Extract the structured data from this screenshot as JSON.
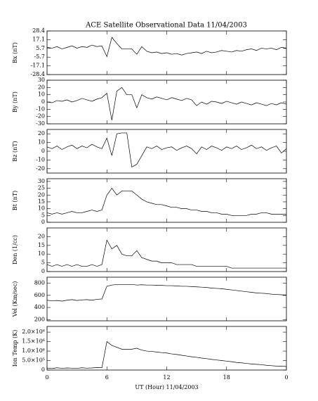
{
  "chart_data": [
    {
      "type": "line",
      "title": "ACE Satellite Observational Data   11/04/2003",
      "ylabel": "Bx (nT)",
      "x": [
        0,
        0.5,
        1,
        1.5,
        2,
        2.5,
        3,
        3.5,
        4,
        4.5,
        5,
        5.5,
        6,
        6.5,
        7,
        7.5,
        8,
        8.5,
        9,
        9.5,
        10,
        10.5,
        11,
        11.5,
        12,
        12.5,
        13,
        13.5,
        14,
        14.5,
        15,
        15.5,
        16,
        16.5,
        17,
        17.5,
        18,
        18.5,
        19,
        19.5,
        20,
        20.5,
        21,
        21.5,
        22,
        22.5,
        23,
        23.5,
        24
      ],
      "values": [
        7,
        6,
        8,
        5,
        7,
        9,
        6,
        8,
        7,
        10,
        8,
        9,
        -5,
        20,
        12,
        5,
        5,
        5,
        -2,
        8,
        2,
        0,
        1,
        -1,
        0,
        -2,
        -1,
        -3,
        -1,
        0,
        1,
        -1,
        2,
        0,
        1,
        3,
        2,
        1,
        3,
        2,
        4,
        5,
        3,
        6,
        5,
        6,
        4,
        7,
        6
      ],
      "xlim": [
        0,
        24
      ],
      "xticks": [
        0,
        6,
        12,
        18,
        24
      ],
      "ylim": [
        -28.4,
        28.4
      ],
      "yticks": [
        28.4,
        17.1,
        5.7,
        -5.7,
        -17.1,
        -28.4
      ],
      "color": "#000000"
    },
    {
      "type": "line",
      "ylabel": "By (nT)",
      "x": [
        0,
        0.5,
        1,
        1.5,
        2,
        2.5,
        3,
        3.5,
        4,
        4.5,
        5,
        5.5,
        6,
        6.5,
        7,
        7.5,
        8,
        8.5,
        9,
        9.5,
        10,
        10.5,
        11,
        11.5,
        12,
        12.5,
        13,
        13.5,
        14,
        14.5,
        15,
        15.5,
        16,
        16.5,
        17,
        17.5,
        18,
        18.5,
        19,
        19.5,
        20,
        20.5,
        21,
        21.5,
        22,
        22.5,
        23,
        23.5,
        24
      ],
      "values": [
        0,
        -1,
        2,
        1,
        3,
        0,
        2,
        5,
        3,
        1,
        4,
        6,
        12,
        -25,
        15,
        20,
        10,
        10,
        -8,
        10,
        6,
        4,
        7,
        5,
        3,
        6,
        4,
        2,
        5,
        3,
        -5,
        0,
        -3,
        1,
        0,
        -2,
        1,
        -1,
        -3,
        0,
        -2,
        -4,
        -1,
        -3,
        -5,
        -2,
        -4,
        -1,
        -3
      ],
      "xlim": [
        0,
        24
      ],
      "xticks": [
        0,
        6,
        12,
        18,
        24
      ],
      "ylim": [
        -30,
        30
      ],
      "yticks": [
        30,
        20,
        10,
        0,
        -10,
        -20,
        -30
      ],
      "color": "#000000"
    },
    {
      "type": "line",
      "ylabel": "Bz (nT)",
      "x": [
        0,
        0.5,
        1,
        1.5,
        2,
        2.5,
        3,
        3.5,
        4,
        4.5,
        5,
        5.5,
        6,
        6.5,
        7,
        7.5,
        8,
        8.5,
        9,
        9.5,
        10,
        10.5,
        11,
        11.5,
        12,
        12.5,
        13,
        13.5,
        14,
        14.5,
        15,
        15.5,
        16,
        16.5,
        17,
        17.5,
        18,
        18.5,
        19,
        19.5,
        20,
        20.5,
        21,
        21.5,
        22,
        22.5,
        23,
        23.5,
        24
      ],
      "values": [
        5,
        3,
        6,
        2,
        5,
        7,
        3,
        6,
        4,
        8,
        5,
        3,
        15,
        -5,
        20,
        21,
        21,
        -18,
        -15,
        -5,
        5,
        3,
        6,
        2,
        4,
        5,
        1,
        4,
        6,
        3,
        -3,
        5,
        2,
        6,
        4,
        1,
        5,
        3,
        6,
        2,
        4,
        7,
        3,
        5,
        1,
        4,
        6,
        -2,
        3
      ],
      "xlim": [
        0,
        24
      ],
      "xticks": [
        0,
        6,
        12,
        18,
        24
      ],
      "ylim": [
        -25,
        25
      ],
      "yticks": [
        20,
        10,
        0,
        -10,
        -20
      ],
      "color": "#000000"
    },
    {
      "type": "line",
      "ylabel": "Bt (nT)",
      "x": [
        0,
        0.5,
        1,
        1.5,
        2,
        2.5,
        3,
        3.5,
        4,
        4.5,
        5,
        5.5,
        6,
        6.5,
        7,
        7.5,
        8,
        8.5,
        9,
        9.5,
        10,
        10.5,
        11,
        11.5,
        12,
        12.5,
        13,
        13.5,
        14,
        14.5,
        15,
        15.5,
        16,
        16.5,
        17,
        17.5,
        18,
        18.5,
        19,
        19.5,
        20,
        20.5,
        21,
        21.5,
        22,
        22.5,
        23,
        23.5,
        24
      ],
      "values": [
        7,
        6,
        7,
        6,
        7,
        8,
        7,
        7,
        8,
        9,
        8,
        9,
        20,
        25,
        20,
        23,
        23,
        23,
        20,
        17,
        15,
        14,
        13,
        13,
        12,
        11,
        11,
        10,
        10,
        9,
        9,
        8,
        8,
        7,
        7,
        6,
        6,
        5,
        5,
        5,
        5,
        6,
        6,
        7,
        7,
        6,
        6,
        6,
        6
      ],
      "xlim": [
        0,
        24
      ],
      "xticks": [
        0,
        6,
        12,
        18,
        24
      ],
      "ylim": [
        0,
        32
      ],
      "yticks": [
        0,
        5,
        10,
        15,
        20,
        25,
        30
      ],
      "color": "#000000"
    },
    {
      "type": "line",
      "ylabel": "Den (1/cc)",
      "x": [
        0,
        0.5,
        1,
        1.5,
        2,
        2.5,
        3,
        3.5,
        4,
        4.5,
        5,
        5.5,
        6,
        6.5,
        7,
        7.5,
        8,
        8.5,
        9,
        9.5,
        10,
        10.5,
        11,
        11.5,
        12,
        12.5,
        13,
        13.5,
        14,
        14.5,
        15,
        15.5,
        16,
        16.5,
        17,
        17.5,
        18,
        18.5,
        19,
        19.5,
        20,
        20.5,
        21,
        21.5,
        22,
        22.5,
        23,
        23.5,
        24
      ],
      "values": [
        4,
        3,
        4,
        3,
        4,
        3,
        4,
        3,
        3,
        4,
        3,
        4,
        18,
        13,
        15,
        10,
        9,
        9,
        12,
        8,
        7,
        6,
        6,
        5,
        5,
        5,
        4,
        4,
        4,
        4,
        3,
        3,
        3,
        3,
        3,
        3,
        3,
        2,
        2,
        2,
        2,
        2,
        2,
        2,
        2,
        2,
        2,
        2,
        2
      ],
      "xlim": [
        0,
        24
      ],
      "xticks": [
        0,
        6,
        12,
        18,
        24
      ],
      "ylim": [
        0,
        25
      ],
      "yticks": [
        0,
        5,
        10,
        15,
        20
      ],
      "color": "#000000"
    },
    {
      "type": "line",
      "ylabel": "Vel (Km/sec)",
      "x": [
        0,
        0.5,
        1,
        1.5,
        2,
        2.5,
        3,
        3.5,
        4,
        4.5,
        5,
        5.5,
        6,
        6.5,
        7,
        7.5,
        8,
        8.5,
        9,
        9.5,
        10,
        10.5,
        11,
        11.5,
        12,
        12.5,
        13,
        13.5,
        14,
        14.5,
        15,
        15.5,
        16,
        16.5,
        17,
        17.5,
        18,
        18.5,
        19,
        19.5,
        20,
        20.5,
        21,
        21.5,
        22,
        22.5,
        23,
        23.5,
        24
      ],
      "values": [
        520,
        510,
        515,
        505,
        520,
        530,
        515,
        525,
        530,
        520,
        535,
        540,
        750,
        770,
        780,
        780,
        780,
        780,
        770,
        775,
        770,
        770,
        765,
        765,
        760,
        760,
        755,
        750,
        750,
        745,
        740,
        735,
        730,
        720,
        715,
        710,
        700,
        690,
        680,
        670,
        660,
        650,
        640,
        635,
        630,
        620,
        615,
        610,
        605
      ],
      "xlim": [
        0,
        24
      ],
      "xticks": [
        0,
        6,
        12,
        18,
        24
      ],
      "ylim": [
        180,
        900
      ],
      "yticks": [
        200,
        400,
        600,
        800
      ],
      "color": "#000000"
    },
    {
      "type": "line",
      "ylabel": "Ion Temp (K)",
      "xlabel": "UT (Hour)  11/04/2003",
      "x": [
        0,
        0.5,
        1,
        1.5,
        2,
        2.5,
        3,
        3.5,
        4,
        4.5,
        5,
        5.5,
        6,
        6.5,
        7,
        7.5,
        8,
        8.5,
        9,
        9.5,
        10,
        10.5,
        11,
        11.5,
        12,
        12.5,
        13,
        13.5,
        14,
        14.5,
        15,
        15.5,
        16,
        16.5,
        17,
        17.5,
        18,
        18.5,
        19,
        19.5,
        20,
        20.5,
        21,
        21.5,
        22,
        22.5,
        23,
        23.5,
        24
      ],
      "values": [
        100000,
        80000,
        120000,
        90000,
        110000,
        100000,
        90000,
        120000,
        100000,
        110000,
        130000,
        120000,
        1500000,
        1300000,
        1200000,
        1100000,
        1100000,
        1100000,
        1150000,
        1050000,
        1000000,
        980000,
        950000,
        920000,
        900000,
        850000,
        820000,
        780000,
        740000,
        700000,
        670000,
        630000,
        600000,
        560000,
        530000,
        500000,
        470000,
        440000,
        400000,
        380000,
        350000,
        320000,
        300000,
        280000,
        250000,
        230000,
        210000,
        200000,
        190000
      ],
      "xlim": [
        0,
        24
      ],
      "xticks": [
        0,
        6,
        12,
        18,
        {
          "value": 24,
          "label": "0"
        }
      ],
      "ylim": [
        0,
        2300000
      ],
      "yticks": [
        0,
        {
          "value": 500000,
          "label": "5.0×10⁵"
        },
        {
          "value": 1000000,
          "label": "1.0×10⁶"
        },
        {
          "value": 1500000,
          "label": "1.5×10⁶"
        },
        {
          "value": 2000000,
          "label": "2.0×10⁶"
        }
      ],
      "color": "#000000"
    }
  ]
}
